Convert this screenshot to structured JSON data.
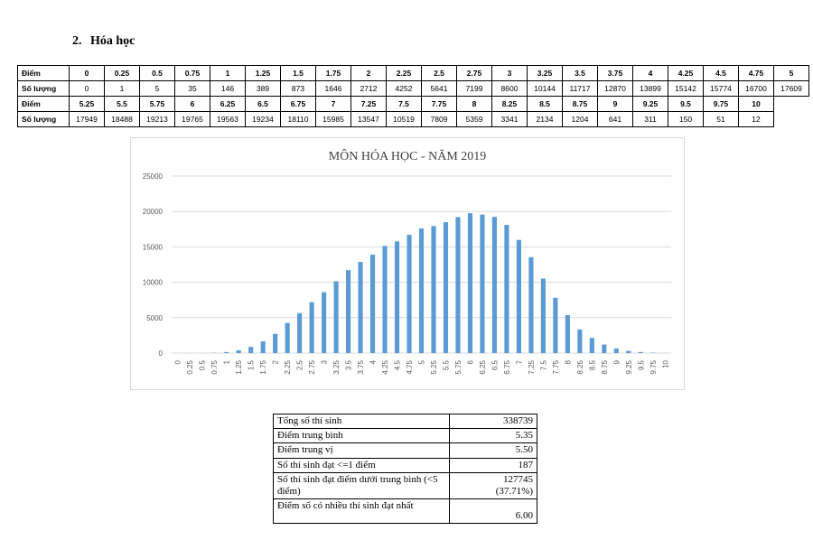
{
  "section": {
    "number": "2.",
    "title": "Hóa học"
  },
  "score_table": {
    "row_label_score": "Điểm",
    "row_label_count": "Số lượng",
    "top_scores": [
      "0",
      "0.25",
      "0.5",
      "0.75",
      "1",
      "1.25",
      "1.5",
      "1.75",
      "2",
      "2.25",
      "2.5",
      "2.75",
      "3",
      "3.25",
      "3.5",
      "3.75",
      "4",
      "4.25",
      "4.5",
      "4.75",
      "5"
    ],
    "top_counts": [
      "0",
      "1",
      "5",
      "35",
      "146",
      "389",
      "873",
      "1646",
      "2712",
      "4252",
      "5641",
      "7199",
      "8600",
      "10144",
      "11717",
      "12870",
      "13899",
      "15142",
      "15774",
      "16700",
      "17609"
    ],
    "bottom_scores": [
      "5.25",
      "5.5",
      "5.75",
      "6",
      "6.25",
      "6.5",
      "6.75",
      "7",
      "7.25",
      "7.5",
      "7.75",
      "8",
      "8.25",
      "8.5",
      "8.75",
      "9",
      "9.25",
      "9.5",
      "9.75",
      "10"
    ],
    "bottom_counts": [
      "17949",
      "18488",
      "19213",
      "19765",
      "19563",
      "19234",
      "18110",
      "15985",
      "13547",
      "10519",
      "7809",
      "5359",
      "3341",
      "2134",
      "1204",
      "641",
      "311",
      "150",
      "51",
      "12"
    ]
  },
  "chart_data": {
    "type": "bar",
    "title": "MÔN HÓA HỌC - NĂM 2019",
    "xlabel": "",
    "ylabel": "",
    "ylim": [
      0,
      25000
    ],
    "yticks": [
      "0",
      "5000",
      "10000",
      "15000",
      "20000",
      "25000"
    ],
    "grid": true,
    "bar_color": "#5b9bd5",
    "categories": [
      "0",
      "0.25",
      "0.5",
      "0.75",
      "1",
      "1.25",
      "1.5",
      "1.75",
      "2",
      "2.25",
      "2.5",
      "2.75",
      "3",
      "3.25",
      "3.5",
      "3.75",
      "4",
      "4.25",
      "4.5",
      "4.75",
      "5",
      "5.25",
      "5.5",
      "5.75",
      "6",
      "6.25",
      "6.5",
      "6.75",
      "7",
      "7.25",
      "7.5",
      "7.75",
      "8",
      "8.25",
      "8.5",
      "8.75",
      "9",
      "9.25",
      "9.5",
      "9.75",
      "10"
    ],
    "values": [
      0,
      1,
      5,
      35,
      146,
      389,
      873,
      1646,
      2712,
      4252,
      5641,
      7199,
      8600,
      10144,
      11717,
      12870,
      13899,
      15142,
      15774,
      16700,
      17609,
      17949,
      18488,
      19213,
      19765,
      19563,
      19234,
      18110,
      15985,
      13547,
      10519,
      7809,
      5359,
      3341,
      2134,
      1204,
      641,
      311,
      150,
      51,
      12
    ]
  },
  "stats": {
    "total_label": "Tổng số thí sinh",
    "total_value": "338739",
    "mean_label": "Điểm trung bình",
    "mean_value": "5.35",
    "median_label": "Điểm trung vị",
    "median_value": "5.50",
    "le1_label": "Số thí sinh đạt <=1 điểm",
    "le1_value": "187",
    "below5_label": "Số thí sinh đạt điểm dưới trung bình (<5 điểm)",
    "below5_value": "127745",
    "below5_pct": "(37.71%)",
    "mode_label": "Điểm số có nhiều thí sinh đạt nhất",
    "mode_value": "6.00"
  }
}
